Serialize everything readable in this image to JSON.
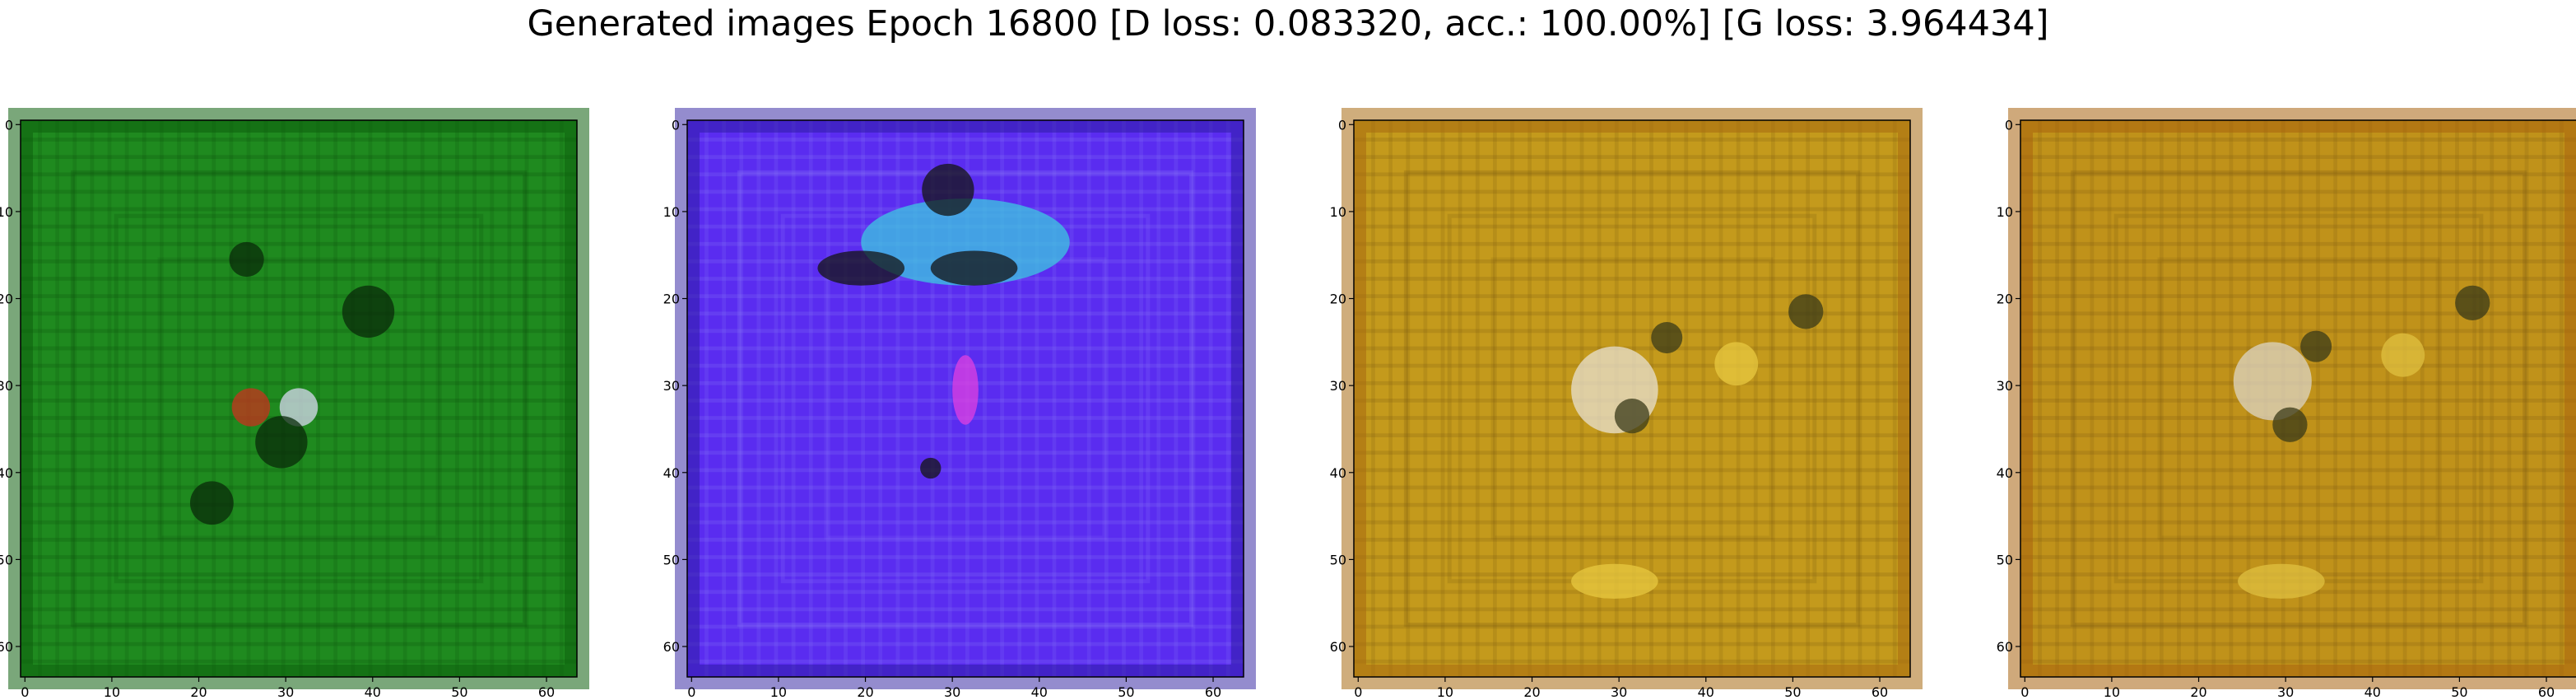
{
  "figure": {
    "title": "Generated images Epoch 16800 [D loss: 0.083320, acc.: 100.00%] [G loss: 3.964434]"
  },
  "axes_ticks": {
    "x": [
      "0",
      "10",
      "20",
      "30",
      "40",
      "50",
      "60"
    ],
    "y": [
      "0",
      "10",
      "20",
      "30",
      "40",
      "50",
      "60"
    ]
  },
  "panels": [
    {
      "id": "panel-1",
      "description": "green generated image",
      "base_color": "#1f8a1f",
      "frame_color": "#0d5e0d",
      "grid_color": "#0b4d0b",
      "accent_colors": [
        "#c8321e",
        "#d8d8f0",
        "#0a2a0a"
      ]
    },
    {
      "id": "panel-2",
      "description": "blue-violet generated image",
      "base_color": "#5a2cf0",
      "frame_color": "#2a1a9e",
      "grid_color": "#8a7af8",
      "accent_colors": [
        "#3cc8e0",
        "#141414",
        "#e040e0"
      ]
    },
    {
      "id": "panel-3",
      "description": "ochre generated image",
      "base_color": "#c49a1c",
      "frame_color": "#a86a10",
      "grid_color": "#7a5a10",
      "accent_colors": [
        "#e8e0d0",
        "#3a3a18",
        "#e8c840"
      ]
    },
    {
      "id": "panel-4",
      "description": "ochre generated image",
      "base_color": "#c0921a",
      "frame_color": "#a8620e",
      "grid_color": "#7a5810",
      "accent_colors": [
        "#dcd4c4",
        "#3a3a18",
        "#e0c040"
      ]
    }
  ]
}
